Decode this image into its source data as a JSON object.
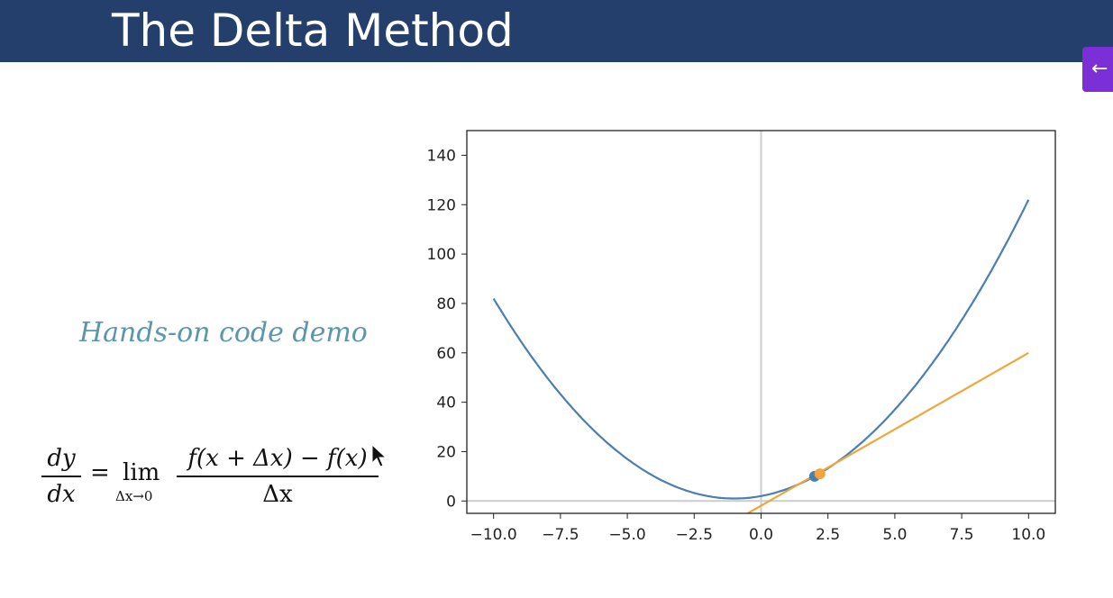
{
  "slide": {
    "title": "The Delta Method",
    "caption": "Hands-on code demo"
  },
  "side_button": {
    "icon": "arrow-left-icon",
    "glyph": "←",
    "color": "#7b2fd6"
  },
  "formula": {
    "lhs_num": "dy",
    "lhs_den": "dx",
    "equals": "=",
    "lim": "lim",
    "lim_sub": "Δx→0",
    "rhs_num": "f(x + Δx) − f(x)",
    "rhs_den": "Δx"
  },
  "colors": {
    "header": "#243f6b",
    "caption": "#5a97ad",
    "curve": "#4a7fb0",
    "tangent": "#f0a63a",
    "point": "#f0a63a"
  },
  "chart_data": {
    "type": "line",
    "xlim": [
      -11,
      11
    ],
    "ylim": [
      -5,
      150
    ],
    "xticks": [
      "−10.0",
      "−7.5",
      "−5.0",
      "−2.5",
      "0.0",
      "2.5",
      "5.0",
      "7.5",
      "10.0"
    ],
    "xtick_values": [
      -10,
      -7.5,
      -5,
      -2.5,
      0,
      2.5,
      5,
      7.5,
      10
    ],
    "yticks": [
      "0",
      "20",
      "40",
      "60",
      "80",
      "100",
      "120",
      "140"
    ],
    "ytick_values": [
      0,
      20,
      40,
      60,
      80,
      100,
      120,
      140
    ],
    "reference_lines": {
      "x": 0,
      "y": 0,
      "color": "#cccccc"
    },
    "series": [
      {
        "kind": "curve",
        "formula": "x^2 + 2x + 2",
        "x": [
          -10,
          -9,
          -8,
          -7,
          -6,
          -5,
          -4,
          -3,
          -2,
          -1,
          0,
          1,
          2,
          3,
          4,
          5,
          6,
          7,
          8,
          9,
          10
        ],
        "values": [
          82,
          65,
          50,
          37,
          26,
          17,
          10,
          5,
          2,
          1,
          2,
          5,
          10,
          17,
          26,
          37,
          50,
          65,
          82,
          101,
          122
        ],
        "color": "#4a7fb0"
      },
      {
        "kind": "tangent",
        "x": [
          -0.5,
          10
        ],
        "values": [
          -5,
          60
        ],
        "color": "#f0a63a"
      }
    ],
    "points": [
      {
        "x": 2,
        "y": 10,
        "color": "#4a7fb0"
      },
      {
        "x": 2.2,
        "y": 11,
        "color": "#f0a63a"
      }
    ]
  }
}
